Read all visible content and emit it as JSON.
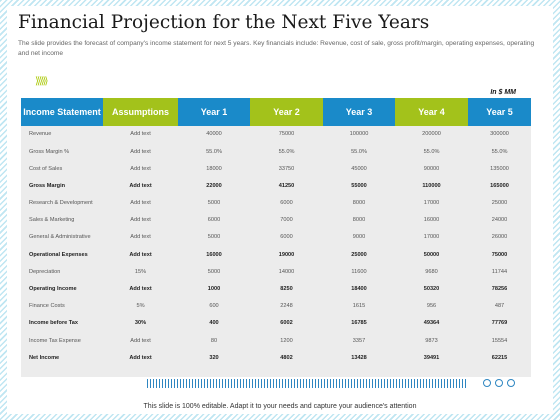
{
  "title": "Financial Projection for the Next Five Years",
  "subtitle": "The slide provides  the forecast of company's income statement for next 5 years. Key financials include: Revenue,  cost of sale, gross profit/margin, operating expenses, operating and net income",
  "unit": "In $ MM",
  "headers": [
    "Income Statement",
    "Assumptions",
    "Year 1",
    "Year 2",
    "Year 3",
    "Year 4",
    "Year 5"
  ],
  "rows": [
    {
      "label": "Revenue",
      "bold": false,
      "values": [
        "Add text",
        "40000",
        "75000",
        "100000",
        "200000",
        "300000"
      ]
    },
    {
      "label": "Gross Margin %",
      "bold": false,
      "values": [
        "Add text",
        "55.0%",
        "55.0%",
        "55.0%",
        "55.0%",
        "55.0%"
      ]
    },
    {
      "label": "Cost of Sales",
      "bold": false,
      "values": [
        "Add text",
        "18000",
        "33750",
        "45000",
        "90000",
        "135000"
      ]
    },
    {
      "label": "Gross Margin",
      "bold": true,
      "values": [
        "Add text",
        "22000",
        "41250",
        "55000",
        "110000",
        "165000"
      ]
    },
    {
      "label": "Research & Development",
      "bold": false,
      "values": [
        "Add text",
        "5000",
        "6000",
        "8000",
        "17000",
        "25000"
      ]
    },
    {
      "label": "Sales & Marketing",
      "bold": false,
      "values": [
        "Add text",
        "6000",
        "7000",
        "8000",
        "16000",
        "24000"
      ]
    },
    {
      "label": "General & Administrative",
      "bold": false,
      "values": [
        "Add text",
        "5000",
        "6000",
        "9000",
        "17000",
        "26000"
      ]
    },
    {
      "label": "Operational Expenses",
      "bold": true,
      "values": [
        "Add text",
        "16000",
        "19000",
        "25000",
        "50000",
        "75000"
      ]
    },
    {
      "label": "Depreciation",
      "bold": false,
      "values": [
        "15%",
        "5000",
        "14000",
        "11600",
        "9680",
        "11744"
      ]
    },
    {
      "label": "Operating Income",
      "bold": true,
      "values": [
        "Add text",
        "1000",
        "8250",
        "18400",
        "50320",
        "78256"
      ]
    },
    {
      "label": "Finance Costs",
      "bold": false,
      "values": [
        "5%",
        "600",
        "2248",
        "1615",
        "956",
        "487"
      ]
    },
    {
      "label": "Income before Tax",
      "bold": true,
      "values": [
        "30%",
        "400",
        "6002",
        "16785",
        "49364",
        "77769"
      ]
    },
    {
      "label": "Income Tax Expense",
      "bold": false,
      "values": [
        "Add text",
        "80",
        "1200",
        "3357",
        "9873",
        "15554"
      ]
    },
    {
      "label": "Net Income",
      "bold": true,
      "values": [
        "Add text",
        "320",
        "4802",
        "13428",
        "39491",
        "62215"
      ]
    }
  ],
  "footer": "This slide is 100% editable. Adapt it to your needs and capture your audience's attention",
  "colors": {
    "blue": "#1a8ac9",
    "green": "#a3c21b",
    "table_bg": "#ececec"
  },
  "icons": {
    "chevrons": "triple-chevron-right-icon",
    "dots": "three-dots-icon"
  }
}
